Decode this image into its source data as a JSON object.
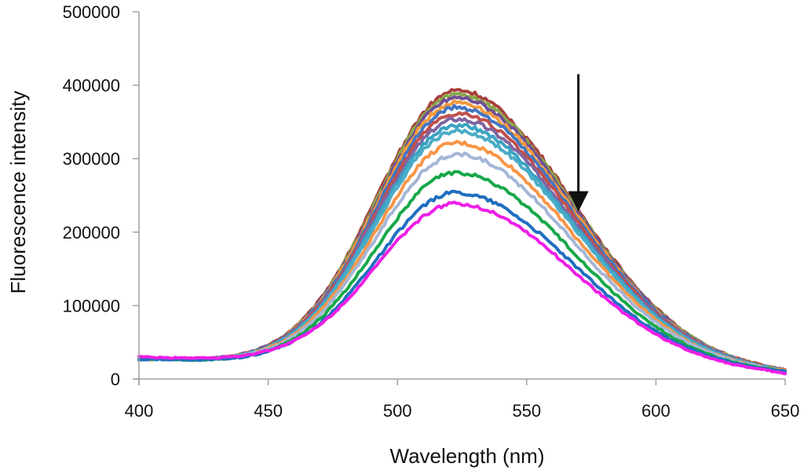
{
  "chart_data": {
    "type": "line",
    "title": "",
    "xlabel": "Wavelength (nm)",
    "ylabel": "Fluorescence intensity",
    "xlim": [
      400,
      650
    ],
    "ylim": [
      0,
      500000
    ],
    "xticks": [
      400,
      450,
      500,
      550,
      600,
      650
    ],
    "yticks": [
      0,
      100000,
      200000,
      300000,
      400000,
      500000
    ],
    "xtick_labels": [
      "400",
      "450",
      "500",
      "550",
      "600",
      "650"
    ],
    "ytick_labels": [
      "0",
      "100000",
      "200000",
      "300000",
      "400000",
      "500000"
    ],
    "grid": false,
    "legend": "none",
    "annotations": [
      {
        "type": "arrow",
        "direction": "down",
        "meaning": "decreasing fluorescence intensity",
        "x_data": 570,
        "y_start": 415000,
        "y_end": 228000
      }
    ],
    "x": [
      400,
      410,
      420,
      430,
      440,
      450,
      460,
      470,
      480,
      490,
      500,
      510,
      520,
      530,
      540,
      550,
      560,
      570,
      580,
      590,
      600,
      610,
      620,
      630,
      640,
      650
    ],
    "value_scale": 1000,
    "series": [
      {
        "name": "series-1",
        "color": "#a8403c",
        "values": [
          27,
          27,
          27,
          29,
          34,
          46,
          70,
          108,
          164,
          233,
          304,
          362,
          391,
          388,
          365,
          328,
          282,
          230,
          180,
          135,
          97,
          67,
          45,
          30,
          20,
          13
        ]
      },
      {
        "name": "series-2",
        "color": "#8aa64a",
        "values": [
          27,
          27,
          27,
          29,
          34,
          46,
          69,
          107,
          162,
          230,
          300,
          358,
          386,
          383,
          361,
          324,
          278,
          228,
          178,
          133,
          96,
          67,
          45,
          30,
          19,
          13
        ]
      },
      {
        "name": "series-3",
        "color": "#6f4f96",
        "values": [
          27,
          27,
          27,
          29,
          34,
          46,
          68,
          106,
          160,
          227,
          296,
          353,
          381,
          378,
          356,
          320,
          275,
          225,
          176,
          132,
          95,
          66,
          44,
          29,
          19,
          13
        ]
      },
      {
        "name": "series-4",
        "color": "#f39a3c",
        "values": [
          27,
          27,
          27,
          28,
          34,
          45,
          68,
          105,
          158,
          224,
          292,
          348,
          375,
          372,
          350,
          315,
          270,
          221,
          173,
          130,
          93,
          65,
          44,
          29,
          19,
          13
        ]
      },
      {
        "name": "series-5",
        "color": "#4277c2",
        "values": [
          27,
          27,
          27,
          28,
          33,
          45,
          67,
          103,
          155,
          220,
          287,
          341,
          368,
          365,
          344,
          309,
          265,
          217,
          170,
          128,
          92,
          64,
          43,
          29,
          19,
          13
        ]
      },
      {
        "name": "series-6",
        "color": "#c0504d",
        "values": [
          27,
          27,
          27,
          28,
          33,
          45,
          66,
          101,
          152,
          215,
          280,
          334,
          360,
          357,
          336,
          302,
          260,
          213,
          166,
          125,
          90,
          63,
          42,
          28,
          19,
          13
        ]
      },
      {
        "name": "series-7",
        "color": "#8064a2",
        "values": [
          27,
          27,
          27,
          28,
          33,
          44,
          65,
          99,
          149,
          211,
          274,
          326,
          352,
          349,
          329,
          296,
          254,
          208,
          163,
          122,
          88,
          61,
          42,
          28,
          18,
          12
        ]
      },
      {
        "name": "series-8",
        "color": "#3aa3c4",
        "values": [
          27,
          27,
          27,
          28,
          33,
          44,
          64,
          97,
          146,
          206,
          268,
          319,
          344,
          341,
          322,
          289,
          248,
          203,
          159,
          120,
          86,
          60,
          41,
          27,
          18,
          12
        ]
      },
      {
        "name": "series-9",
        "color": "#4bacc6",
        "values": [
          27,
          27,
          27,
          28,
          33,
          43,
          63,
          96,
          143,
          201,
          262,
          312,
          336,
          333,
          314,
          282,
          242,
          199,
          156,
          117,
          84,
          59,
          40,
          27,
          18,
          12
        ]
      },
      {
        "name": "series-10",
        "color": "#f79646",
        "values": [
          27,
          27,
          27,
          28,
          32,
          42,
          61,
          92,
          137,
          192,
          250,
          297,
          320,
          317,
          299,
          269,
          231,
          189,
          149,
          112,
          81,
          56,
          38,
          26,
          17,
          12
        ]
      },
      {
        "name": "series-11",
        "color": "#a5b6d6",
        "values": [
          27,
          27,
          27,
          28,
          32,
          41,
          59,
          88,
          131,
          183,
          238,
          282,
          304,
          302,
          284,
          256,
          220,
          180,
          141,
          106,
          77,
          54,
          37,
          25,
          17,
          11
        ]
      },
      {
        "name": "series-12",
        "color": "#18a84a",
        "values": [
          27,
          27,
          26,
          27,
          31,
          39,
          55,
          82,
          121,
          169,
          219,
          260,
          280,
          277,
          261,
          235,
          202,
          166,
          130,
          98,
          71,
          50,
          34,
          23,
          16,
          11
        ]
      },
      {
        "name": "series-13",
        "color": "#1f6fc0",
        "values": [
          27,
          27,
          26,
          27,
          30,
          38,
          52,
          76,
          111,
          154,
          199,
          235,
          253,
          250,
          236,
          212,
          183,
          150,
          118,
          89,
          65,
          46,
          32,
          22,
          15,
          11
        ]
      },
      {
        "name": "series-14",
        "color": "#ee1ee6",
        "values": [
          30,
          29,
          29,
          29,
          32,
          39,
          52,
          74,
          106,
          146,
          188,
          221,
          238,
          235,
          222,
          200,
          172,
          141,
          111,
          84,
          61,
          43,
          30,
          20,
          14,
          8
        ]
      }
    ]
  },
  "colors": {
    "axis": "#a0a0a0",
    "text": "#111111",
    "arrow": "#111111",
    "background": "#ffffff"
  }
}
